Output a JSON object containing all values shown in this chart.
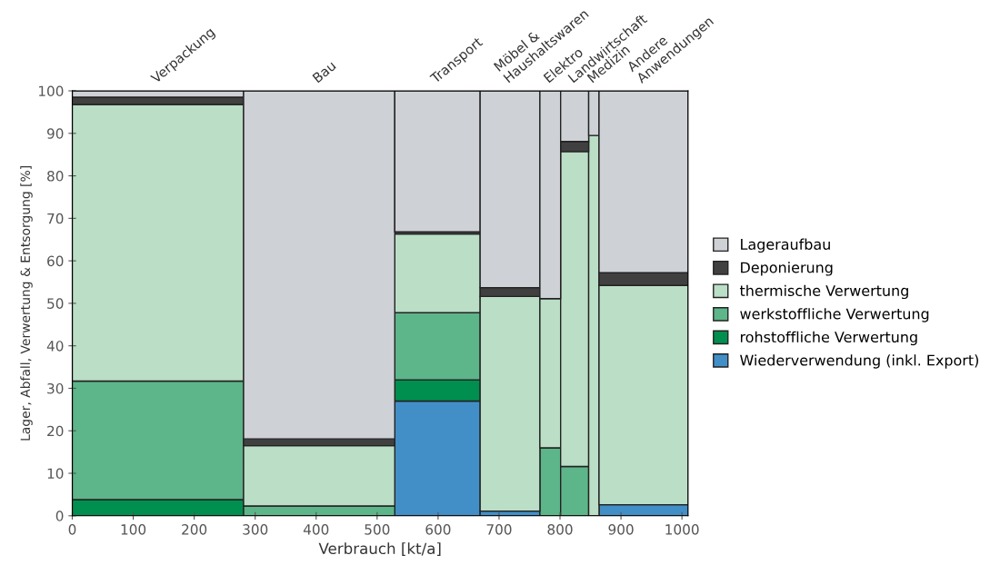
{
  "chart_data": {
    "type": "bar",
    "stacked": true,
    "xlabel": "Verbrauch [kt/a]",
    "ylabel": "Lager, Abfall, Verwertung & Entsorgung [%]",
    "annotations": [
      {
        "text": "Verpackung",
        "x": 140.5,
        "y": 100
      },
      {
        "text": "Bau",
        "x": 405,
        "y": 100
      },
      {
        "text": "Transport",
        "x": 599,
        "y": 100
      },
      {
        "text": "Möbel &\nHaushaltswaren",
        "x": 718,
        "y": 100
      },
      {
        "text": "Elektro",
        "x": 784,
        "y": 100
      },
      {
        "text": "Landwirtschaft",
        "x": 824,
        "y": 100
      },
      {
        "text": "Medizin",
        "x": 855.5,
        "y": 100
      },
      {
        "text": "Andere\nAnwendungen",
        "x": 937,
        "y": 100
      }
    ],
    "x": [
      140.5,
      405,
      599,
      718,
      784,
      824,
      855.5,
      937
    ],
    "xlim": [
      0,
      1010
    ],
    "xticks": [
      0,
      100,
      200,
      300,
      400,
      500,
      600,
      700,
      800,
      900,
      1000
    ],
    "ylim": [
      0,
      100
    ],
    "yticks": [
      0,
      10,
      20,
      30,
      40,
      50,
      60,
      70,
      80,
      90,
      100
    ],
    "legend": "right",
    "grid": false,
    "series": [
      {
        "name": "Wiederverwendung (inkl. Export)",
        "color": "#428fc8",
        "values": [
          0,
          0,
          27.0,
          1.1,
          0,
          0,
          0,
          2.6
        ]
      },
      {
        "name": "rohstoffliche Verwertung",
        "color": "#008f4f",
        "values": [
          3.8,
          0,
          5.0,
          0,
          0,
          0,
          0,
          0
        ]
      },
      {
        "name": "werkstoffliche Verwertung",
        "color": "#5db58a",
        "values": [
          27.9,
          2.3,
          15.8,
          0,
          16.0,
          11.6,
          0,
          0
        ]
      },
      {
        "name": "thermische Verwertung",
        "color": "#bbdec6",
        "values": [
          65.1,
          14.2,
          18.5,
          50.5,
          35.1,
          74.1,
          89.5,
          51.6
        ]
      },
      {
        "name": "Deponierung",
        "color": "#404040",
        "values": [
          1.7,
          1.6,
          0.5,
          2.1,
          0,
          2.4,
          0,
          3.0
        ]
      },
      {
        "name": "Lageraufbau",
        "color": "#ced1d6",
        "values": [
          1.5,
          81.9,
          33.2,
          46.3,
          48.9,
          11.9,
          10.5,
          42.8
        ]
      }
    ]
  }
}
